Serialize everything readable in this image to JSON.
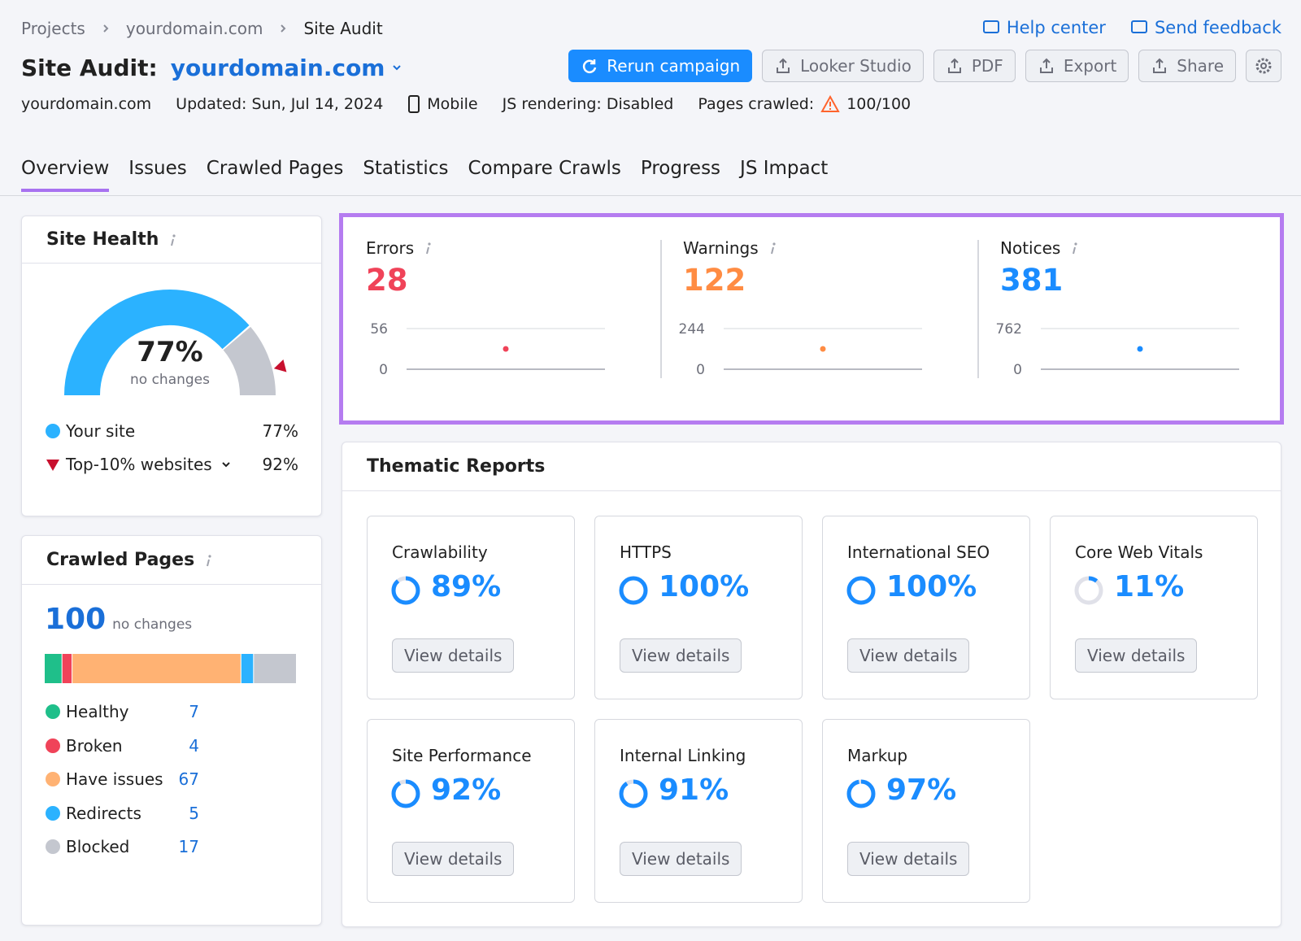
{
  "breadcrumbs": [
    "Projects",
    "yourdomain.com",
    "Site Audit"
  ],
  "header": {
    "title": "Site Audit:",
    "domain": "yourdomain.com",
    "links": [
      "Help center",
      "Send feedback"
    ],
    "buttons": [
      "Rerun campaign",
      "Looker Studio",
      "PDF",
      "Export",
      "Share"
    ]
  },
  "meta": {
    "domain": "yourdomain.com",
    "updated": "Updated: Sun, Jul 14, 2024",
    "device": "Mobile",
    "js_rendering": "JS rendering: Disabled",
    "pages_crawled_label": "Pages crawled:",
    "pages_crawled": "100/100"
  },
  "tabs": [
    "Overview",
    "Issues",
    "Crawled Pages",
    "Statistics",
    "Compare Crawls",
    "Progress",
    "JS Impact"
  ],
  "site_health": {
    "title": "Site Health",
    "score": 77,
    "score_label": "77%",
    "change": "no changes",
    "legend": [
      {
        "name": "Your site",
        "value": 77,
        "label": "77%",
        "color": "#2bb2ff"
      },
      {
        "name": "Top-10% websites",
        "value": 92,
        "label": "92%",
        "color": "#c8102e"
      }
    ]
  },
  "crawled_pages": {
    "title": "Crawled Pages",
    "total": 100,
    "change": "no changes",
    "segments": [
      {
        "name": "Healthy",
        "value": 7,
        "color": "#1fbf8a"
      },
      {
        "name": "Broken",
        "value": 4,
        "color": "#f04359"
      },
      {
        "name": "Have issues",
        "value": 67,
        "color": "#ffb273"
      },
      {
        "name": "Redirects",
        "value": 5,
        "color": "#2bb2ff"
      },
      {
        "name": "Blocked",
        "value": 17,
        "color": "#c4c7cf"
      }
    ]
  },
  "issues": [
    {
      "name": "Errors",
      "value": 28,
      "color": "#f04359",
      "ylim": [
        0,
        56
      ],
      "yticks": [
        0,
        56
      ]
    },
    {
      "name": "Warnings",
      "value": 122,
      "color": "#ff8c43",
      "ylim": [
        0,
        244
      ],
      "yticks": [
        0,
        244
      ]
    },
    {
      "name": "Notices",
      "value": 381,
      "color": "#1a8cff",
      "ylim": [
        0,
        762
      ],
      "yticks": [
        0,
        762
      ]
    }
  ],
  "thematic_reports": {
    "title": "Thematic Reports",
    "button": "View details",
    "color": "#1a8cff",
    "items": [
      {
        "name": "Crawlability",
        "value": 89,
        "label": "89%"
      },
      {
        "name": "HTTPS",
        "value": 100,
        "label": "100%"
      },
      {
        "name": "International SEO",
        "value": 100,
        "label": "100%"
      },
      {
        "name": "Core Web Vitals",
        "value": 11,
        "label": "11%"
      },
      {
        "name": "Site Performance",
        "value": 92,
        "label": "92%"
      },
      {
        "name": "Internal Linking",
        "value": 91,
        "label": "91%"
      },
      {
        "name": "Markup",
        "value": 97,
        "label": "97%"
      }
    ]
  }
}
